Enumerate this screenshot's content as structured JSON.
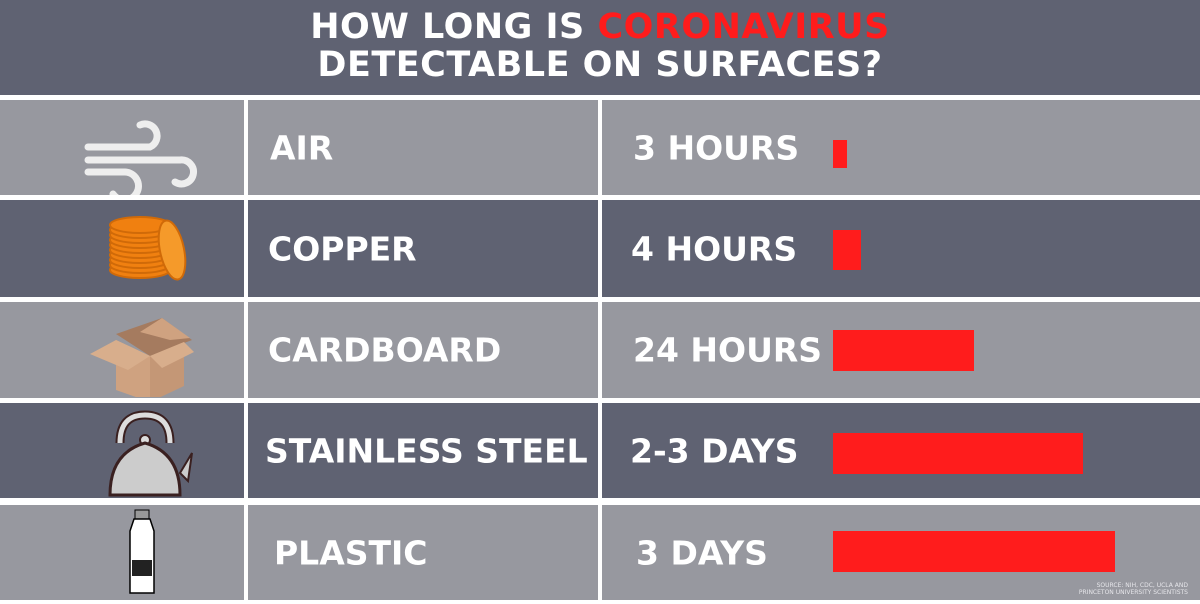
{
  "header": {
    "title_part1": "HOW LONG IS ",
    "title_highlight": "CORONAVIRUS",
    "title_line2": "DETECTABLE ON SURFACES?"
  },
  "colors": {
    "accent": "#ff1c1c",
    "dark_row": "#5f6272",
    "light_row": "#97989f"
  },
  "chart_data": {
    "type": "bar",
    "orientation": "horizontal",
    "categories": [
      "AIR",
      "COPPER",
      "CARDBOARD",
      "STAINLESS STEEL",
      "PLASTIC"
    ],
    "value_labels": [
      "3 HOURS",
      "4 HOURS",
      "24 HOURS",
      "2-3 DAYS",
      "3 DAYS"
    ],
    "values_hours": [
      3,
      4,
      24,
      60,
      72
    ],
    "icons": [
      "wind-icon",
      "copper-coins-icon",
      "cardboard-box-icon",
      "kettle-icon",
      "plastic-bottle-icon"
    ]
  },
  "source": {
    "line1": "SOURCE: NIH, CDC, UCLA AND",
    "line2": "PRINCETON UNIVERSITY SCIENTISTS"
  }
}
